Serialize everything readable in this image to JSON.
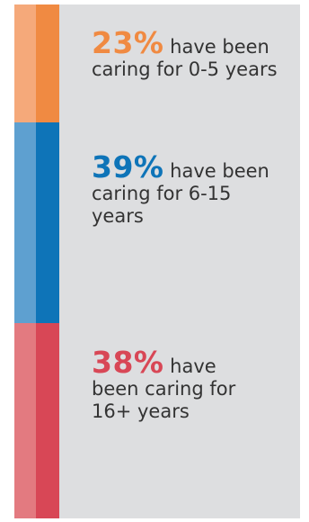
{
  "chart_data": {
    "type": "bar",
    "orientation": "stacked-vertical",
    "categories": [
      "0-5 years",
      "6-15 years",
      "16+ years"
    ],
    "values": [
      23,
      39,
      38
    ],
    "unit": "%",
    "segments": [
      {
        "percent_label": "23%",
        "text_line1": " have been",
        "text_rest": [
          "caring for 0-5 years"
        ],
        "color_light": "#f5a97a",
        "color_dark": "#f08a42"
      },
      {
        "percent_label": "39%",
        "text_line1": " have been",
        "text_rest": [
          "caring for 6-15",
          "years"
        ],
        "color_light": "#5ea0d0",
        "color_dark": "#0e74b8"
      },
      {
        "percent_label": "38%",
        "text_line1": " have",
        "text_rest": [
          "been caring for",
          "16+ years"
        ],
        "color_light": "#e37a80",
        "color_dark": "#d84756"
      }
    ]
  }
}
